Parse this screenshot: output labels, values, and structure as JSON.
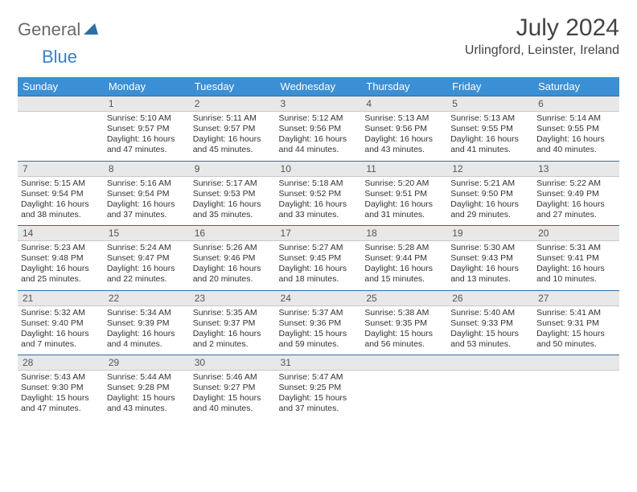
{
  "header": {
    "logo_gray": "General",
    "logo_blue": "Blue",
    "month_title": "July 2024",
    "location": "Urlingford, Leinster, Ireland"
  },
  "colors": {
    "header_bg": "#3b8fd4",
    "header_text": "#ffffff",
    "daybar_bg": "#e8e8e8",
    "daybar_border_top": "#2f6fa8",
    "logo_gray": "#6a6a6a",
    "logo_blue": "#3b7fc4",
    "text": "#333333"
  },
  "days_of_week": [
    "Sunday",
    "Monday",
    "Tuesday",
    "Wednesday",
    "Thursday",
    "Friday",
    "Saturday"
  ],
  "weeks": [
    {
      "nums": [
        "",
        "1",
        "2",
        "3",
        "4",
        "5",
        "6"
      ],
      "cells": [
        null,
        {
          "sunrise": "Sunrise: 5:10 AM",
          "sunset": "Sunset: 9:57 PM",
          "day1": "Daylight: 16 hours",
          "day2": "and 47 minutes."
        },
        {
          "sunrise": "Sunrise: 5:11 AM",
          "sunset": "Sunset: 9:57 PM",
          "day1": "Daylight: 16 hours",
          "day2": "and 45 minutes."
        },
        {
          "sunrise": "Sunrise: 5:12 AM",
          "sunset": "Sunset: 9:56 PM",
          "day1": "Daylight: 16 hours",
          "day2": "and 44 minutes."
        },
        {
          "sunrise": "Sunrise: 5:13 AM",
          "sunset": "Sunset: 9:56 PM",
          "day1": "Daylight: 16 hours",
          "day2": "and 43 minutes."
        },
        {
          "sunrise": "Sunrise: 5:13 AM",
          "sunset": "Sunset: 9:55 PM",
          "day1": "Daylight: 16 hours",
          "day2": "and 41 minutes."
        },
        {
          "sunrise": "Sunrise: 5:14 AM",
          "sunset": "Sunset: 9:55 PM",
          "day1": "Daylight: 16 hours",
          "day2": "and 40 minutes."
        }
      ]
    },
    {
      "nums": [
        "7",
        "8",
        "9",
        "10",
        "11",
        "12",
        "13"
      ],
      "cells": [
        {
          "sunrise": "Sunrise: 5:15 AM",
          "sunset": "Sunset: 9:54 PM",
          "day1": "Daylight: 16 hours",
          "day2": "and 38 minutes."
        },
        {
          "sunrise": "Sunrise: 5:16 AM",
          "sunset": "Sunset: 9:54 PM",
          "day1": "Daylight: 16 hours",
          "day2": "and 37 minutes."
        },
        {
          "sunrise": "Sunrise: 5:17 AM",
          "sunset": "Sunset: 9:53 PM",
          "day1": "Daylight: 16 hours",
          "day2": "and 35 minutes."
        },
        {
          "sunrise": "Sunrise: 5:18 AM",
          "sunset": "Sunset: 9:52 PM",
          "day1": "Daylight: 16 hours",
          "day2": "and 33 minutes."
        },
        {
          "sunrise": "Sunrise: 5:20 AM",
          "sunset": "Sunset: 9:51 PM",
          "day1": "Daylight: 16 hours",
          "day2": "and 31 minutes."
        },
        {
          "sunrise": "Sunrise: 5:21 AM",
          "sunset": "Sunset: 9:50 PM",
          "day1": "Daylight: 16 hours",
          "day2": "and 29 minutes."
        },
        {
          "sunrise": "Sunrise: 5:22 AM",
          "sunset": "Sunset: 9:49 PM",
          "day1": "Daylight: 16 hours",
          "day2": "and 27 minutes."
        }
      ]
    },
    {
      "nums": [
        "14",
        "15",
        "16",
        "17",
        "18",
        "19",
        "20"
      ],
      "cells": [
        {
          "sunrise": "Sunrise: 5:23 AM",
          "sunset": "Sunset: 9:48 PM",
          "day1": "Daylight: 16 hours",
          "day2": "and 25 minutes."
        },
        {
          "sunrise": "Sunrise: 5:24 AM",
          "sunset": "Sunset: 9:47 PM",
          "day1": "Daylight: 16 hours",
          "day2": "and 22 minutes."
        },
        {
          "sunrise": "Sunrise: 5:26 AM",
          "sunset": "Sunset: 9:46 PM",
          "day1": "Daylight: 16 hours",
          "day2": "and 20 minutes."
        },
        {
          "sunrise": "Sunrise: 5:27 AM",
          "sunset": "Sunset: 9:45 PM",
          "day1": "Daylight: 16 hours",
          "day2": "and 18 minutes."
        },
        {
          "sunrise": "Sunrise: 5:28 AM",
          "sunset": "Sunset: 9:44 PM",
          "day1": "Daylight: 16 hours",
          "day2": "and 15 minutes."
        },
        {
          "sunrise": "Sunrise: 5:30 AM",
          "sunset": "Sunset: 9:43 PM",
          "day1": "Daylight: 16 hours",
          "day2": "and 13 minutes."
        },
        {
          "sunrise": "Sunrise: 5:31 AM",
          "sunset": "Sunset: 9:41 PM",
          "day1": "Daylight: 16 hours",
          "day2": "and 10 minutes."
        }
      ]
    },
    {
      "nums": [
        "21",
        "22",
        "23",
        "24",
        "25",
        "26",
        "27"
      ],
      "cells": [
        {
          "sunrise": "Sunrise: 5:32 AM",
          "sunset": "Sunset: 9:40 PM",
          "day1": "Daylight: 16 hours",
          "day2": "and 7 minutes."
        },
        {
          "sunrise": "Sunrise: 5:34 AM",
          "sunset": "Sunset: 9:39 PM",
          "day1": "Daylight: 16 hours",
          "day2": "and 4 minutes."
        },
        {
          "sunrise": "Sunrise: 5:35 AM",
          "sunset": "Sunset: 9:37 PM",
          "day1": "Daylight: 16 hours",
          "day2": "and 2 minutes."
        },
        {
          "sunrise": "Sunrise: 5:37 AM",
          "sunset": "Sunset: 9:36 PM",
          "day1": "Daylight: 15 hours",
          "day2": "and 59 minutes."
        },
        {
          "sunrise": "Sunrise: 5:38 AM",
          "sunset": "Sunset: 9:35 PM",
          "day1": "Daylight: 15 hours",
          "day2": "and 56 minutes."
        },
        {
          "sunrise": "Sunrise: 5:40 AM",
          "sunset": "Sunset: 9:33 PM",
          "day1": "Daylight: 15 hours",
          "day2": "and 53 minutes."
        },
        {
          "sunrise": "Sunrise: 5:41 AM",
          "sunset": "Sunset: 9:31 PM",
          "day1": "Daylight: 15 hours",
          "day2": "and 50 minutes."
        }
      ]
    },
    {
      "nums": [
        "28",
        "29",
        "30",
        "31",
        "",
        "",
        ""
      ],
      "cells": [
        {
          "sunrise": "Sunrise: 5:43 AM",
          "sunset": "Sunset: 9:30 PM",
          "day1": "Daylight: 15 hours",
          "day2": "and 47 minutes."
        },
        {
          "sunrise": "Sunrise: 5:44 AM",
          "sunset": "Sunset: 9:28 PM",
          "day1": "Daylight: 15 hours",
          "day2": "and 43 minutes."
        },
        {
          "sunrise": "Sunrise: 5:46 AM",
          "sunset": "Sunset: 9:27 PM",
          "day1": "Daylight: 15 hours",
          "day2": "and 40 minutes."
        },
        {
          "sunrise": "Sunrise: 5:47 AM",
          "sunset": "Sunset: 9:25 PM",
          "day1": "Daylight: 15 hours",
          "day2": "and 37 minutes."
        },
        null,
        null,
        null
      ]
    }
  ]
}
